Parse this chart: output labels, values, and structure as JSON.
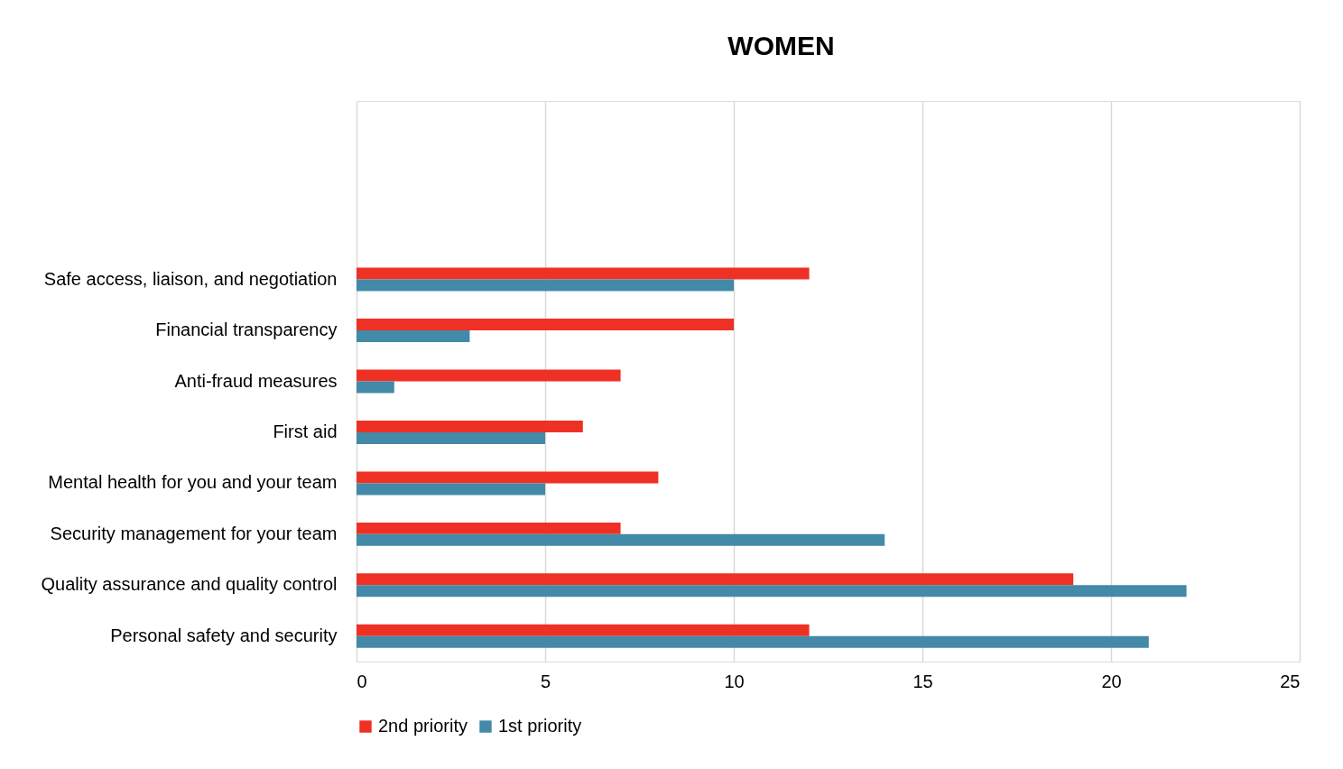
{
  "chart_data": {
    "type": "bar",
    "orientation": "horizontal",
    "title": "WOMEN",
    "categories": [
      null,
      null,
      null,
      "Safe access, liaison, and negotiation",
      "Financial transparency",
      "Anti-fraud measures",
      "First aid",
      "Mental health for you and your team",
      "Security management for your team",
      "Quality assurance and quality control",
      "Personal safety and security"
    ],
    "series": [
      {
        "name": "2nd priority",
        "color": "#ee3124",
        "values": [
          null,
          null,
          null,
          12,
          10,
          7,
          6,
          8,
          7,
          19,
          12
        ]
      },
      {
        "name": "1st priority",
        "color": "#4389a8",
        "values": [
          null,
          null,
          null,
          10,
          3,
          1,
          5,
          5,
          14,
          22,
          21
        ]
      }
    ],
    "xlim": [
      0,
      25
    ],
    "xticks": [
      0,
      5,
      10,
      15,
      20,
      25
    ],
    "grid": "x",
    "legend": "bottom"
  }
}
